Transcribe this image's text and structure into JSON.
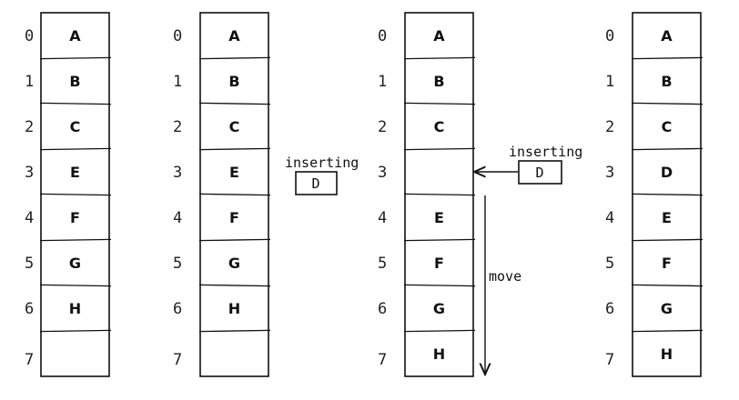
{
  "arrays": [
    {
      "indices": [
        "0",
        "1",
        "2",
        "3",
        "4",
        "5",
        "6",
        "7"
      ],
      "cells": [
        "A",
        "B",
        "C",
        "E",
        "F",
        "G",
        "H",
        ""
      ]
    },
    {
      "indices": [
        "0",
        "1",
        "2",
        "3",
        "4",
        "5",
        "6",
        "7"
      ],
      "cells": [
        "A",
        "B",
        "C",
        "E",
        "F",
        "G",
        "H",
        ""
      ]
    },
    {
      "indices": [
        "0",
        "1",
        "2",
        "3",
        "4",
        "5",
        "6",
        "7"
      ],
      "cells": [
        "A",
        "B",
        "C",
        "",
        "E",
        "F",
        "G",
        "H"
      ]
    },
    {
      "indices": [
        "0",
        "1",
        "2",
        "3",
        "4",
        "5",
        "6",
        "7"
      ],
      "cells": [
        "A",
        "B",
        "C",
        "D",
        "E",
        "F",
        "G",
        "H"
      ]
    }
  ],
  "insert_box_1": {
    "label": "inserting",
    "value": "D"
  },
  "insert_box_2": {
    "label": "inserting",
    "value": "D"
  },
  "move_label": "move",
  "colors": {
    "stroke": "#111111",
    "background": "#ffffff"
  }
}
